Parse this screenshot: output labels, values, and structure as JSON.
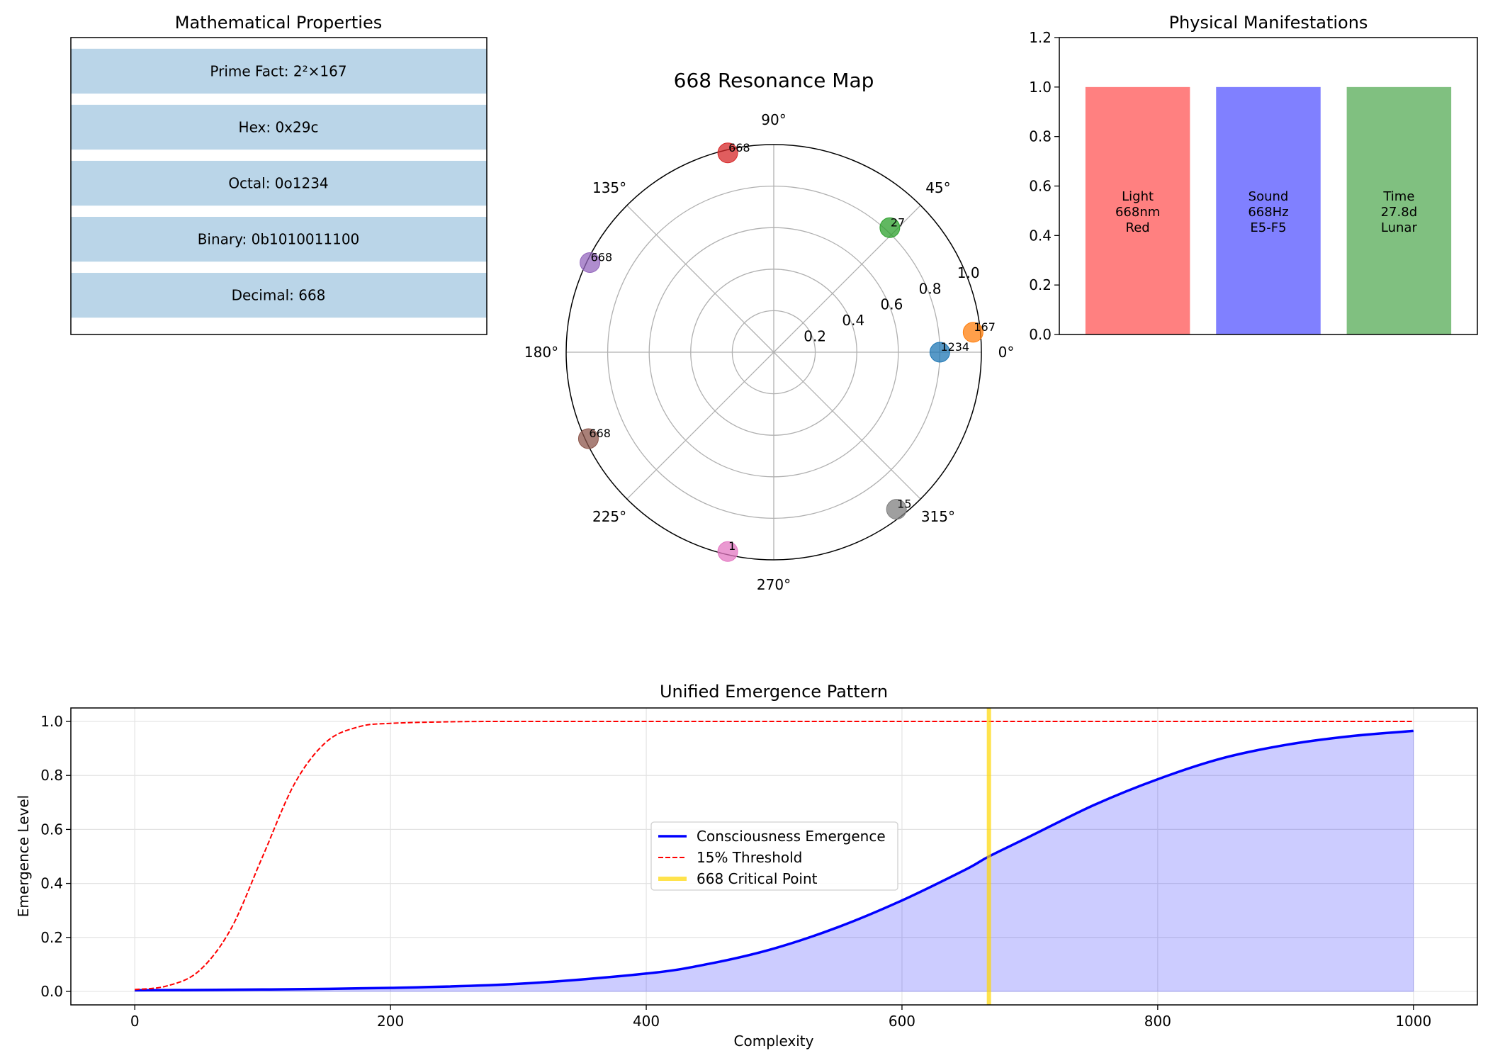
{
  "chart_data": [
    {
      "type": "table",
      "title": "Mathematical Properties",
      "rows": [
        "Prime Fact: 2²×167",
        "Hex: 0x29c",
        "Octal: 0o1234",
        "Binary: 0b1010011100",
        "Decimal: 668"
      ],
      "row_color": "#bad5e8"
    },
    {
      "type": "scatter",
      "projection": "polar",
      "title": "668 Resonance Map",
      "r_ticks": [
        "0.2",
        "0.4",
        "0.6",
        "0.8",
        "1.0"
      ],
      "r_tick_values": [
        0.2,
        0.4,
        0.6,
        0.8,
        1.0
      ],
      "theta_ticks": [
        "0°",
        "45°",
        "90°",
        "135°",
        "180°",
        "225°",
        "270°",
        "315°"
      ],
      "rlim": [
        0,
        1.0
      ],
      "points": [
        {
          "label": "1234",
          "theta_deg": 0,
          "r": 0.8,
          "color": "#1f77b4"
        },
        {
          "label": "167",
          "theta_deg": 5.7,
          "r": 0.965,
          "color": "#ff7f0e"
        },
        {
          "label": "27",
          "theta_deg": 47,
          "r": 0.82,
          "color": "#2ca02c"
        },
        {
          "label": "668",
          "theta_deg": 103,
          "r": 0.985,
          "color": "#d62728"
        },
        {
          "label": "668",
          "theta_deg": 154,
          "r": 0.985,
          "color": "#9467bd"
        },
        {
          "label": "668",
          "theta_deg": 205,
          "r": 0.985,
          "color": "#8c564b"
        },
        {
          "label": "1",
          "theta_deg": 257,
          "r": 0.985,
          "color": "#e377c2"
        },
        {
          "label": "15",
          "theta_deg": 308,
          "r": 0.96,
          "color": "#7f7f7f"
        }
      ]
    },
    {
      "type": "bar",
      "title": "Physical Manifestations",
      "categories": [
        "Light",
        "Sound",
        "Time"
      ],
      "values": [
        1.0,
        1.0,
        1.0
      ],
      "bar_labels": [
        [
          "Light",
          "668nm",
          "Red"
        ],
        [
          "Sound",
          "668Hz",
          "E5-F5"
        ],
        [
          "Time",
          "27.8d",
          "Lunar"
        ]
      ],
      "colors": [
        "#ff8080",
        "#8080ff",
        "#80c080"
      ],
      "ylim": [
        0,
        1.2
      ],
      "y_ticks": [
        "0.0",
        "0.2",
        "0.4",
        "0.6",
        "0.8",
        "1.0",
        "1.2"
      ],
      "y_tick_values": [
        0.0,
        0.2,
        0.4,
        0.6,
        0.8,
        1.0,
        1.2
      ]
    },
    {
      "type": "line",
      "title": "Unified Emergence Pattern",
      "xlabel": "Complexity",
      "ylabel": "Emergence Level",
      "xlim": [
        -50,
        1050
      ],
      "ylim": [
        -0.05,
        1.05
      ],
      "x_ticks": [
        "0",
        "200",
        "400",
        "600",
        "800",
        "1000"
      ],
      "x_tick_values": [
        0,
        200,
        400,
        600,
        800,
        1000
      ],
      "y_ticks": [
        "0.0",
        "0.2",
        "0.4",
        "0.6",
        "0.8",
        "1.0"
      ],
      "y_tick_values": [
        0.0,
        0.2,
        0.4,
        0.6,
        0.8,
        1.0
      ],
      "grid": true,
      "legend_position": "center",
      "series": [
        {
          "name": "Consciousness Emergence",
          "style": "solid",
          "color": "#0000ff",
          "fill": true,
          "x": [
            0,
            100,
            200,
            300,
            400,
            450,
            500,
            550,
            600,
            650,
            668,
            700,
            750,
            800,
            850,
            900,
            950,
            1000
          ],
          "y": [
            0.004,
            0.007,
            0.013,
            0.028,
            0.066,
            0.103,
            0.159,
            0.238,
            0.337,
            0.452,
            0.5,
            0.574,
            0.69,
            0.786,
            0.863,
            0.913,
            0.945,
            0.965
          ]
        },
        {
          "name": "15% Threshold",
          "style": "dashed",
          "color": "#ff0000",
          "fill": false,
          "x": [
            0,
            25,
            50,
            75,
            100,
            125,
            150,
            175,
            200,
            250,
            300,
            500,
            700,
            1000
          ],
          "y": [
            0.007,
            0.02,
            0.075,
            0.23,
            0.5,
            0.77,
            0.925,
            0.98,
            0.993,
            0.999,
            1.0,
            1.0,
            1.0,
            1.0
          ]
        },
        {
          "name": "668 Critical Point",
          "style": "vline",
          "color": "#ffd700",
          "x_value": 668
        }
      ]
    }
  ]
}
